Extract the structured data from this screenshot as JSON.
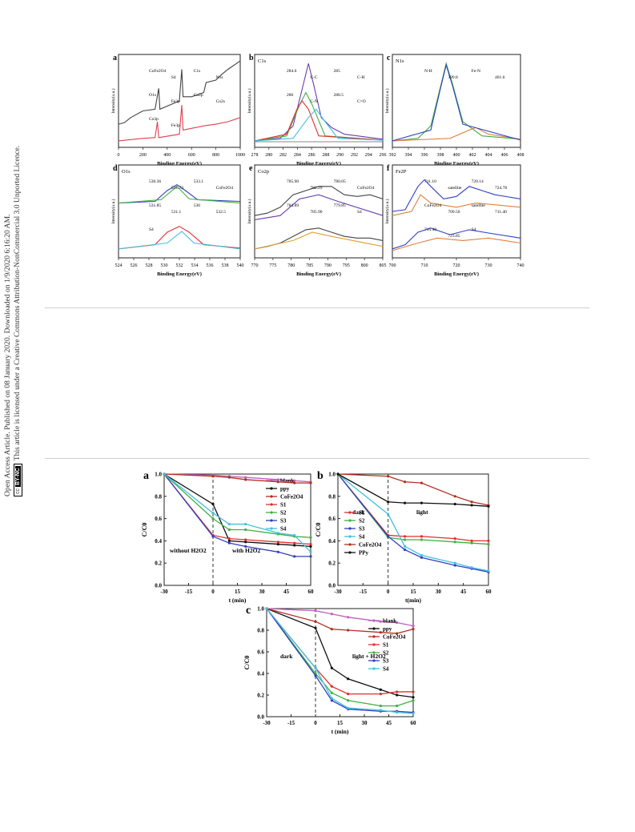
{
  "sidebar": {
    "line1": "Open Access Article. Published on 08 January 2020. Downloaded on 1/9/2020 6:16:20 AM.",
    "line2": "This article is licensed under a Creative Commons Attribution-NonCommercial 3.0 Unported Licence.",
    "cc_badge": "cc",
    "by_nc_badge": "BY-NC"
  },
  "xps_figure": {
    "xlabel": "Binding Energy(eV)",
    "ylabel": "Intensity(a.u.)",
    "panels": [
      {
        "letter": "a",
        "element": "",
        "ticks": [
          "0",
          "200",
          "400",
          "600",
          "800",
          "1000"
        ],
        "labels": [
          "CoFe2O4",
          "S4",
          "C1s",
          "N1s",
          "O1s",
          "Fe2p",
          "Co2p",
          "Co2s",
          "Co3p",
          "Fe3p"
        ]
      },
      {
        "letter": "b",
        "element": "C1s",
        "ticks": [
          "278",
          "280",
          "282",
          "284",
          "286",
          "288",
          "290",
          "292",
          "294",
          "296"
        ],
        "labels": [
          "284.6",
          "C-C",
          "285",
          "C-H",
          "286",
          "C-N",
          "288.5",
          "C=O"
        ]
      },
      {
        "letter": "c",
        "element": "N1s",
        "ticks": [
          "392",
          "394",
          "396",
          "398",
          "400",
          "402",
          "404",
          "406",
          "408"
        ],
        "labels": [
          "N-H",
          "399.8",
          "Fe-N",
          "401.6"
        ]
      },
      {
        "letter": "d",
        "element": "O1s",
        "ticks": [
          "524",
          "526",
          "528",
          "530",
          "532",
          "534",
          "536",
          "538",
          "540"
        ],
        "labels": [
          "530.36",
          "531.73",
          "533.1",
          "CoFe2O4",
          "531.85",
          "531.1",
          "530",
          "532.5",
          "S4"
        ]
      },
      {
        "letter": "e",
        "element": "Co2p",
        "ticks": [
          "770",
          "775",
          "780",
          "785",
          "790",
          "795",
          "800",
          "805"
        ],
        "labels": [
          "785.90",
          "782.29",
          "780.05",
          "CoFe2O4",
          "784.89",
          "785.90",
          "779.85",
          "S4"
        ]
      },
      {
        "letter": "f",
        "element": "Fe2P",
        "ticks": [
          "700",
          "710",
          "720",
          "730",
          "740"
        ],
        "labels": [
          "711.10",
          "satellite",
          "720.14",
          "724.78",
          "CoFe2O4",
          "709.50",
          "satellite",
          "711.40",
          "715.40",
          "723.85",
          "S4"
        ]
      }
    ]
  },
  "chart_data": [
    {
      "panel": "a",
      "type": "line",
      "x": [
        -30,
        0,
        10,
        20,
        40,
        50,
        60
      ],
      "xticks": [
        "-30",
        "-15",
        "0",
        "15",
        "30",
        "45",
        "60"
      ],
      "yticks": [
        "0.0",
        "0.2",
        "0.4",
        "0.6",
        "0.8",
        "1.0"
      ],
      "xlabel": "t (min)",
      "ylabel": "C/C0",
      "ylim": [
        0,
        1
      ],
      "annotations": [
        "without H2O2",
        "with H2O2"
      ],
      "series": [
        {
          "name": "blank",
          "color": "#c060c0",
          "values": [
            1.0,
            0.99,
            0.98,
            0.97,
            0.95,
            0.94,
            0.93
          ]
        },
        {
          "name": "ppy",
          "color": "#111111",
          "values": [
            1.0,
            0.73,
            0.4,
            0.39,
            0.37,
            0.36,
            0.35
          ]
        },
        {
          "name": "CoFe2O4",
          "color": "#b03020",
          "values": [
            1.0,
            0.98,
            0.97,
            0.95,
            0.93,
            0.92,
            0.92
          ]
        },
        {
          "name": "S1",
          "color": "#e03030",
          "values": [
            1.0,
            0.45,
            0.42,
            0.41,
            0.39,
            0.38,
            0.37
          ]
        },
        {
          "name": "S2",
          "color": "#40b040",
          "values": [
            1.0,
            0.6,
            0.5,
            0.5,
            0.46,
            0.44,
            0.43
          ]
        },
        {
          "name": "S3",
          "color": "#3040c0",
          "values": [
            1.0,
            0.44,
            0.38,
            0.35,
            0.3,
            0.26,
            0.26
          ]
        },
        {
          "name": "S4",
          "color": "#40c0e0",
          "values": [
            1.0,
            0.65,
            0.55,
            0.55,
            0.47,
            0.45,
            0.3
          ]
        }
      ]
    },
    {
      "panel": "b",
      "type": "line",
      "x": [
        -30,
        0,
        10,
        20,
        40,
        50,
        60
      ],
      "xticks": [
        "-30",
        "-15",
        "0",
        "15",
        "30",
        "45",
        "60"
      ],
      "yticks": [
        "0.0",
        "0.2",
        "0.4",
        "0.6",
        "0.8",
        "1.0"
      ],
      "xlabel": "t(min)",
      "ylabel": "C/C0",
      "ylim": [
        0,
        1
      ],
      "annotations": [
        "dark",
        "light"
      ],
      "series": [
        {
          "name": "S1",
          "color": "#e03030",
          "values": [
            1.0,
            0.45,
            0.44,
            0.44,
            0.42,
            0.4,
            0.4
          ]
        },
        {
          "name": "S2",
          "color": "#40b040",
          "values": [
            1.0,
            0.43,
            0.41,
            0.41,
            0.39,
            0.38,
            0.37
          ]
        },
        {
          "name": "S3",
          "color": "#3040c0",
          "values": [
            1.0,
            0.44,
            0.32,
            0.25,
            0.18,
            0.15,
            0.12
          ]
        },
        {
          "name": "S4",
          "color": "#40c0e0",
          "values": [
            1.0,
            0.64,
            0.35,
            0.27,
            0.2,
            0.16,
            0.13
          ]
        },
        {
          "name": "CoFe2O4",
          "color": "#b03020",
          "values": [
            1.0,
            0.98,
            0.93,
            0.92,
            0.8,
            0.75,
            0.72
          ]
        },
        {
          "name": "PPy",
          "color": "#111111",
          "values": [
            1.0,
            0.75,
            0.74,
            0.74,
            0.73,
            0.72,
            0.71
          ]
        }
      ]
    },
    {
      "panel": "c",
      "type": "line",
      "x": [
        -30,
        0,
        10,
        20,
        40,
        50,
        60
      ],
      "xticks": [
        "-30",
        "-15",
        "0",
        "15",
        "30",
        "45",
        "60"
      ],
      "yticks": [
        "0.0",
        "0.2",
        "0.4",
        "0.6",
        "0.8",
        "1.0"
      ],
      "xlabel": "t (min)",
      "ylabel": "C/C0",
      "ylim": [
        0,
        1
      ],
      "annotations": [
        "dark",
        "light + H2O2"
      ],
      "series": [
        {
          "name": "blank",
          "color": "#c060c0",
          "values": [
            1.0,
            0.98,
            0.95,
            0.92,
            0.88,
            0.87,
            0.84
          ]
        },
        {
          "name": "ppy",
          "color": "#111111",
          "values": [
            1.0,
            0.82,
            0.45,
            0.35,
            0.25,
            0.2,
            0.18
          ]
        },
        {
          "name": "CoFe2O4",
          "color": "#b03020",
          "values": [
            1.0,
            0.88,
            0.81,
            0.8,
            0.78,
            0.77,
            0.81
          ]
        },
        {
          "name": "S1",
          "color": "#e03030",
          "values": [
            1.0,
            0.45,
            0.28,
            0.21,
            0.21,
            0.23,
            0.23
          ]
        },
        {
          "name": "S2",
          "color": "#40b040",
          "values": [
            1.0,
            0.4,
            0.22,
            0.15,
            0.1,
            0.1,
            0.15
          ]
        },
        {
          "name": "S3",
          "color": "#3040c0",
          "values": [
            1.0,
            0.38,
            0.15,
            0.07,
            0.05,
            0.05,
            0.04
          ]
        },
        {
          "name": "S4",
          "color": "#40c0e0",
          "values": [
            1.0,
            0.45,
            0.17,
            0.08,
            0.06,
            0.04,
            0.03
          ]
        }
      ]
    }
  ]
}
